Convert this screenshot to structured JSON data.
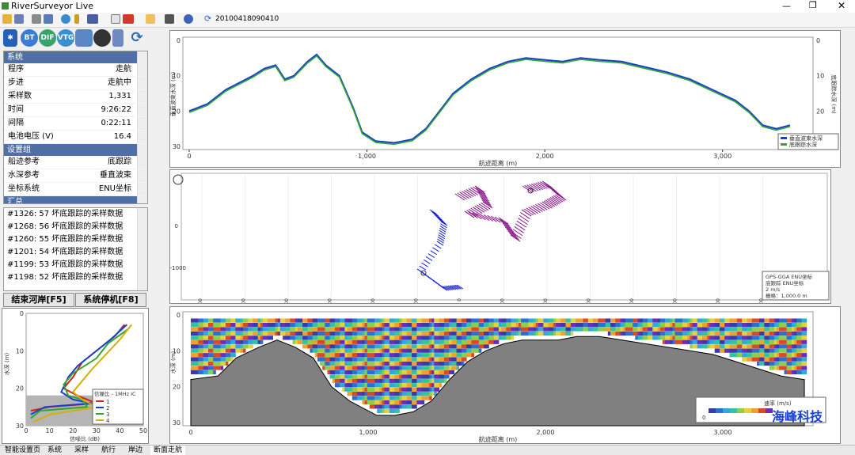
{
  "window": {
    "title": "RiverSurveyor Live"
  },
  "toolbar": {
    "file_id": "20100418090410"
  },
  "iconbar": {
    "bt_label": "BT",
    "dif_label": "DIF",
    "vtg_label": "VTG"
  },
  "status": {
    "sec_system": "系统",
    "rows_system": [
      {
        "k": "程序",
        "v": "走航"
      },
      {
        "k": "步进",
        "v": "走航中"
      },
      {
        "k": "采样数",
        "v": "1,331"
      },
      {
        "k": "时间",
        "v": "9:26:22"
      },
      {
        "k": "间隔",
        "v": "0:22:11"
      },
      {
        "k": "电池电压 (V)",
        "v": "16.4"
      }
    ],
    "sec_settings": "设置组",
    "rows_settings": [
      {
        "k": "船迹参考",
        "v": "底跟踪"
      },
      {
        "k": "水深参考",
        "v": "垂直波束"
      },
      {
        "k": "坐标系统",
        "v": "ENU坐标"
      }
    ],
    "sec_summary": "汇总"
  },
  "messages": [
    "#1326: 57 坏底跟踪的采样数据",
    "#1268: 56 坏底跟踪的采样数据",
    "#1260: 55 坏底跟踪的采样数据",
    "#1201: 54 坏底跟踪的采样数据",
    "#1199: 53 坏底跟踪的采样数据",
    "#1198: 52 坏底跟踪的采样数据"
  ],
  "buttons": {
    "end_bank": "结束河岸[F5]",
    "system_stop": "系统停机[F8]"
  },
  "snr": {
    "ylabel": "水深 (m)",
    "xlabel": "信噪比 (dB)",
    "yticks": [
      "0",
      "10",
      "20",
      "30"
    ],
    "xticks": [
      "0",
      "10",
      "20",
      "30",
      "40",
      "50"
    ],
    "legend_title": "信噪比 - 1MHz IC",
    "legend_items": [
      "1",
      "2",
      "3",
      "4"
    ],
    "colors": [
      "#d62020",
      "#1a3fcf",
      "#2ea82e",
      "#d4b000"
    ]
  },
  "depth_chart": {
    "ylabel_left": "垂直波束水深 (m)",
    "ylabel_right": "底跟踪水深 (m)",
    "xlabel": "航迹距离 (m)",
    "xticks": [
      "0",
      "1,000",
      "2,000",
      "3,000"
    ],
    "yticks": [
      "0",
      "10",
      "20",
      "30"
    ],
    "legend": [
      "垂直波束水深",
      "底跟踪水深"
    ],
    "colors": [
      "#1a3fcf",
      "#2ea82e"
    ]
  },
  "track": {
    "yticks": [
      "0",
      "-1000"
    ],
    "xticks": [
      "-6000",
      "-5000",
      "-4000",
      "-3000",
      "-2000",
      "-1000",
      "0",
      "1000",
      "2000",
      "3000",
      "4000",
      "5000",
      "6000",
      "7000"
    ],
    "legend": [
      "GPS-GGA ENU坐标",
      "底跟踪 ENU坐标",
      "2 m/s",
      "栅格：1,000.0 m"
    ]
  },
  "profile": {
    "ylabel": "水深 (m)",
    "xlabel": "航迹距离 (m)",
    "yticks": [
      "0",
      "10",
      "20",
      "30"
    ],
    "xticks": [
      "0",
      "1,000",
      "2,000",
      "3,000"
    ],
    "legend_title": "速率 (m/s)",
    "legend_min": "0",
    "watermark": "海峰科技"
  },
  "tabs": [
    "智能设置页",
    "系统",
    "采样",
    "航行",
    "岸边",
    "断面走航"
  ]
}
